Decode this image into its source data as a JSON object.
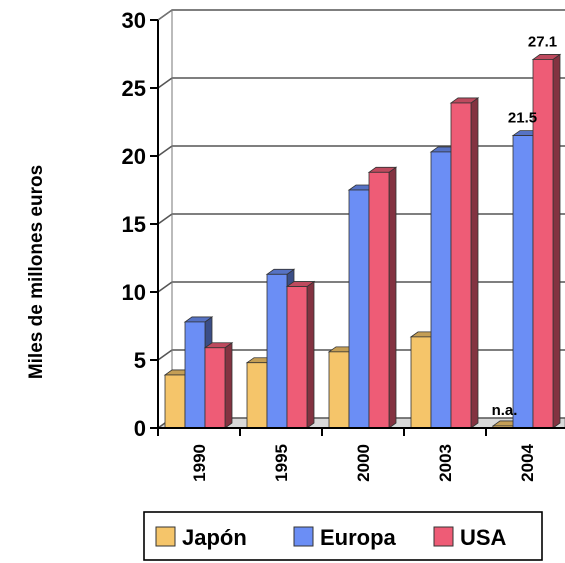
{
  "chart_data": {
    "type": "bar",
    "categories": [
      "1990",
      "1995",
      "2000",
      "2003",
      "2004"
    ],
    "series": [
      {
        "name": "Japón",
        "values": [
          3.9,
          4.8,
          5.6,
          6.7,
          null
        ],
        "color": "#f5c56a"
      },
      {
        "name": "Europa",
        "values": [
          7.8,
          11.3,
          17.5,
          20.3,
          21.5
        ],
        "color": "#6b8ef5"
      },
      {
        "name": "USA",
        "values": [
          5.9,
          10.4,
          18.8,
          23.9,
          27.1
        ],
        "color": "#ee5c76"
      }
    ],
    "title": "",
    "xlabel": "",
    "ylabel": "Miles de millones euros",
    "ylim": [
      0,
      30
    ],
    "yticks": [
      "0",
      "5",
      "10",
      "15",
      "20",
      "25",
      "30"
    ],
    "grid": true,
    "legend_position": "bottom",
    "annotations": [
      {
        "text": "27.1",
        "series": "USA",
        "category": "2004"
      },
      {
        "text": "21.5",
        "series": "Europa",
        "category": "2004"
      },
      {
        "text": "n.a.",
        "series": "Japón",
        "category": "2004"
      }
    ]
  }
}
